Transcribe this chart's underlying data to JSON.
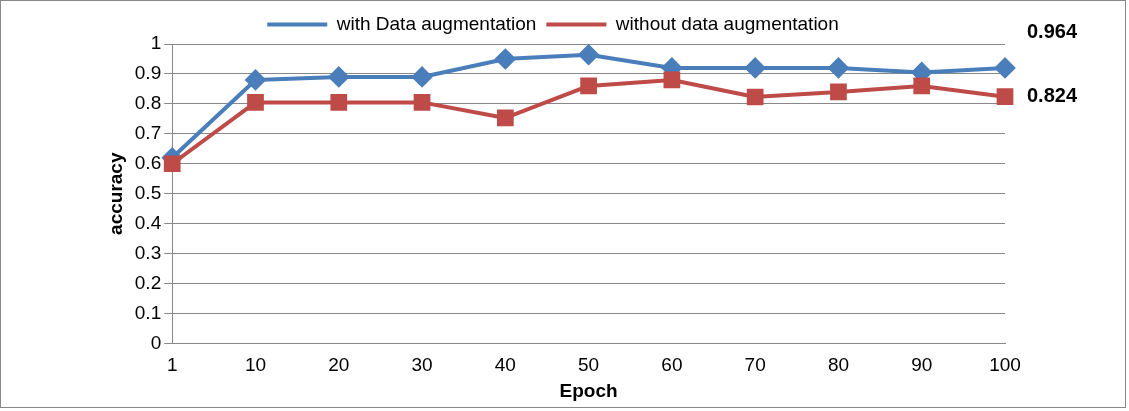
{
  "chart_data": {
    "type": "line",
    "xlabel": "Epoch",
    "ylabel": "accuracy",
    "categories": [
      "1",
      "10",
      "20",
      "30",
      "40",
      "50",
      "60",
      "70",
      "80",
      "90",
      "100"
    ],
    "series": [
      {
        "name": "with Data augmentation",
        "color": "#4a7ebb",
        "marker": "diamond",
        "values": [
          0.62,
          0.88,
          0.89,
          0.89,
          0.95,
          0.964,
          0.92,
          0.92,
          0.92,
          0.905,
          0.92
        ]
      },
      {
        "name": "without data augmentation",
        "color": "#be4b48",
        "marker": "square",
        "values": [
          0.6,
          0.805,
          0.805,
          0.805,
          0.753,
          0.86,
          0.88,
          0.823,
          0.84,
          0.86,
          0.824
        ]
      }
    ],
    "ylim": [
      0,
      1
    ],
    "yticks": [
      0,
      0.1,
      0.2,
      0.3,
      0.4,
      0.5,
      0.6,
      0.7,
      0.8,
      0.9,
      1
    ],
    "grid": "y",
    "legend": "top",
    "line_style": "solid",
    "annotations": [
      "0.964",
      "0.824"
    ]
  }
}
